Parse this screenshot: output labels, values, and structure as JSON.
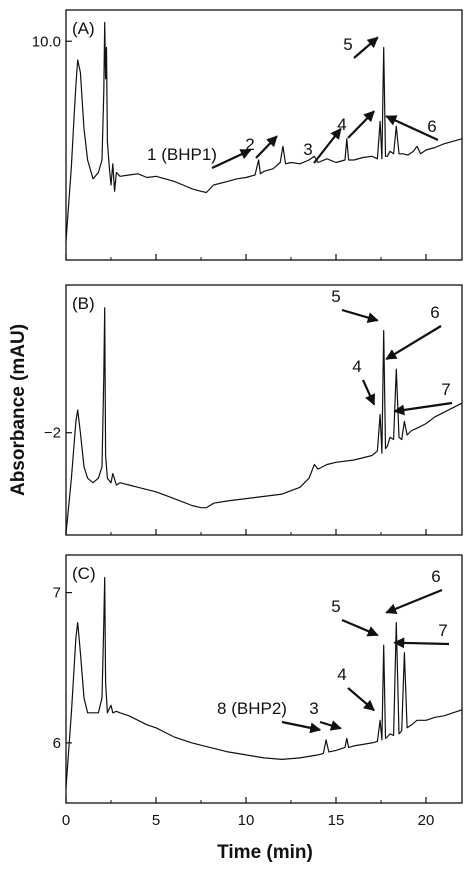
{
  "chart_data": [
    {
      "type": "line",
      "panel_label": "(A)",
      "xlim": [
        0,
        22
      ],
      "x_ticks": [
        0,
        5,
        10,
        15,
        20
      ],
      "y_ticks": [
        10.0
      ],
      "y_tick_labels": [
        "10.0"
      ],
      "grid": false,
      "series": [
        {
          "x": [
            0.0,
            0.3,
            0.45,
            0.55,
            0.65,
            0.8,
            1.0,
            1.2,
            1.5,
            1.8,
            2.0,
            2.1,
            2.15,
            2.2,
            2.25,
            2.3,
            2.4,
            2.5,
            2.6,
            2.7,
            2.8,
            3.0,
            3.5,
            4.0,
            4.5,
            5.0,
            5.5,
            6.0,
            6.5,
            7.0,
            7.5,
            7.8,
            8.2,
            9.0,
            9.5,
            10.0,
            10.5,
            10.7,
            10.8,
            11.0,
            11.5,
            11.9,
            12.05,
            12.2,
            12.5,
            13.0,
            13.5,
            13.8,
            14.0,
            14.5,
            15.0,
            15.5,
            15.6,
            15.7,
            16.0,
            16.5,
            17.0,
            17.3,
            17.45,
            17.55,
            17.65,
            17.75,
            17.85,
            18.0,
            18.2,
            18.35,
            18.5,
            18.7,
            19.0,
            19.3,
            19.5,
            19.7,
            20.0,
            20.5,
            21.0,
            21.5,
            22.0
          ],
          "y": [
            -6.0,
            0.0,
            4.0,
            6.5,
            8.5,
            7.5,
            3.0,
            0.5,
            -1.0,
            -0.5,
            0.5,
            6.0,
            11.5,
            7.0,
            9.5,
            2.0,
            0.0,
            -1.5,
            0.2,
            -2.0,
            -0.5,
            -0.8,
            -0.7,
            -0.6,
            -0.9,
            -0.8,
            -1.0,
            -1.2,
            -1.5,
            -1.8,
            -2.0,
            -2.1,
            -1.5,
            -1.2,
            -1.0,
            -0.9,
            -0.7,
            0.5,
            -0.6,
            -0.4,
            -0.2,
            0.3,
            1.6,
            0.2,
            0.3,
            0.2,
            0.5,
            0.8,
            0.3,
            0.6,
            0.3,
            0.5,
            2.2,
            0.5,
            0.5,
            0.7,
            0.8,
            0.6,
            3.6,
            0.6,
            9.5,
            0.8,
            0.8,
            1.2,
            1.0,
            3.2,
            1.0,
            1.0,
            0.9,
            1.2,
            1.6,
            1.0,
            1.3,
            1.5,
            1.8,
            2.0,
            2.2
          ]
        }
      ],
      "annotations": [
        {
          "text": "1 (BHP1)",
          "peak_x": 10.7,
          "peak_y": 0.5
        },
        {
          "text": "2",
          "peak_x": 12.05,
          "peak_y": 1.6
        },
        {
          "text": "3",
          "peak_x": 15.6,
          "peak_y": 2.2
        },
        {
          "text": "4",
          "peak_x": 17.45,
          "peak_y": 3.6
        },
        {
          "text": "5",
          "peak_x": 17.65,
          "peak_y": 9.5
        },
        {
          "text": "6",
          "peak_x": 18.35,
          "peak_y": 3.2
        }
      ]
    },
    {
      "type": "line",
      "panel_label": "(B)",
      "xlim": [
        0,
        22
      ],
      "x_ticks": [
        0,
        5,
        10,
        15,
        20
      ],
      "y_ticks": [
        -2
      ],
      "y_tick_labels": [
        "−2"
      ],
      "grid": false,
      "series": [
        {
          "x": [
            0.0,
            0.3,
            0.45,
            0.55,
            0.65,
            0.8,
            1.0,
            1.2,
            1.5,
            1.8,
            2.0,
            2.1,
            2.15,
            2.2,
            2.3,
            2.5,
            2.6,
            2.8,
            3.0,
            3.5,
            4.0,
            5.0,
            6.0,
            7.0,
            7.5,
            7.8,
            8.2,
            9.0,
            10.0,
            11.0,
            12.0,
            13.0,
            13.5,
            13.8,
            14.0,
            14.5,
            15.0,
            16.0,
            17.0,
            17.3,
            17.45,
            17.55,
            17.65,
            17.75,
            17.85,
            18.0,
            18.2,
            18.35,
            18.5,
            18.65,
            18.8,
            18.95,
            19.2,
            19.5,
            20.0,
            20.5,
            21.0,
            21.5,
            22.0
          ],
          "y": [
            -8.0,
            -4.0,
            -2.5,
            -1.5,
            -1.0,
            -2.0,
            -3.5,
            -4.0,
            -4.2,
            -4.0,
            -3.5,
            0.5,
            3.5,
            -3.0,
            -4.0,
            -4.2,
            -3.8,
            -4.3,
            -4.2,
            -4.3,
            -4.4,
            -4.6,
            -4.9,
            -5.2,
            -5.3,
            -5.3,
            -5.1,
            -5.0,
            -4.9,
            -4.8,
            -4.7,
            -4.4,
            -4.0,
            -3.4,
            -3.6,
            -3.4,
            -3.3,
            -3.2,
            -3.0,
            -2.8,
            -1.2,
            -2.9,
            2.5,
            -2.7,
            -2.6,
            -2.2,
            -2.3,
            0.8,
            -2.2,
            -2.3,
            -1.5,
            -2.1,
            -1.9,
            -1.8,
            -1.6,
            -1.3,
            -1.1,
            -0.9,
            -0.7
          ]
        }
      ],
      "annotations": [
        {
          "text": "4",
          "peak_x": 17.45,
          "peak_y": -1.2
        },
        {
          "text": "5",
          "peak_x": 17.65,
          "peak_y": 2.5
        },
        {
          "text": "6",
          "peak_x": 18.35,
          "peak_y": 0.8
        },
        {
          "text": "7",
          "peak_x": 18.8,
          "peak_y": -1.5
        }
      ]
    },
    {
      "type": "line",
      "panel_label": "(C)",
      "xlim": [
        0,
        22
      ],
      "x_ticks": [
        0,
        5,
        10,
        15,
        20
      ],
      "y_ticks": [
        6,
        7
      ],
      "y_tick_labels": [
        "6",
        "7"
      ],
      "grid": false,
      "series": [
        {
          "x": [
            0.0,
            0.3,
            0.45,
            0.55,
            0.65,
            0.8,
            1.0,
            1.2,
            1.5,
            1.8,
            2.0,
            2.1,
            2.15,
            2.2,
            2.3,
            2.5,
            2.6,
            2.8,
            3.0,
            3.5,
            4.0,
            4.5,
            5.0,
            5.5,
            6.0,
            7.0,
            8.0,
            9.0,
            10.0,
            11.0,
            12.0,
            13.0,
            13.5,
            14.0,
            14.3,
            14.45,
            14.6,
            15.0,
            15.5,
            15.6,
            15.7,
            16.0,
            16.5,
            17.0,
            17.3,
            17.45,
            17.55,
            17.65,
            17.75,
            17.85,
            18.0,
            18.2,
            18.35,
            18.5,
            18.65,
            18.8,
            18.95,
            19.2,
            19.5,
            20.0,
            20.5,
            21.0,
            21.5,
            22.0
          ],
          "y": [
            5.7,
            6.2,
            6.5,
            6.7,
            6.8,
            6.6,
            6.3,
            6.2,
            6.2,
            6.2,
            6.3,
            6.8,
            7.1,
            6.4,
            6.2,
            6.25,
            6.2,
            6.21,
            6.2,
            6.18,
            6.15,
            6.12,
            6.1,
            6.07,
            6.04,
            6.0,
            5.97,
            5.94,
            5.92,
            5.9,
            5.89,
            5.9,
            5.91,
            5.92,
            5.93,
            6.02,
            5.94,
            5.95,
            5.97,
            6.03,
            5.97,
            5.98,
            5.99,
            6.0,
            6.01,
            6.15,
            6.02,
            6.65,
            6.03,
            6.04,
            6.06,
            6.05,
            6.8,
            6.06,
            6.08,
            6.6,
            6.1,
            6.12,
            6.15,
            6.15,
            6.17,
            6.18,
            6.2,
            6.22
          ]
        }
      ],
      "annotations": [
        {
          "text": "8 (BHP2)",
          "peak_x": 14.45,
          "peak_y": 6.02
        },
        {
          "text": "3",
          "peak_x": 15.6,
          "peak_y": 6.03
        },
        {
          "text": "4",
          "peak_x": 17.45,
          "peak_y": 6.15
        },
        {
          "text": "5",
          "peak_x": 17.65,
          "peak_y": 6.65
        },
        {
          "text": "6",
          "peak_x": 18.35,
          "peak_y": 6.8
        },
        {
          "text": "7",
          "peak_x": 18.8,
          "peak_y": 6.6
        }
      ]
    }
  ],
  "shared": {
    "ylabel": "Absorbance (mAU)",
    "xlabel": "Time (min)"
  },
  "colors": {
    "trace": "#111111",
    "axis": "#111111"
  }
}
